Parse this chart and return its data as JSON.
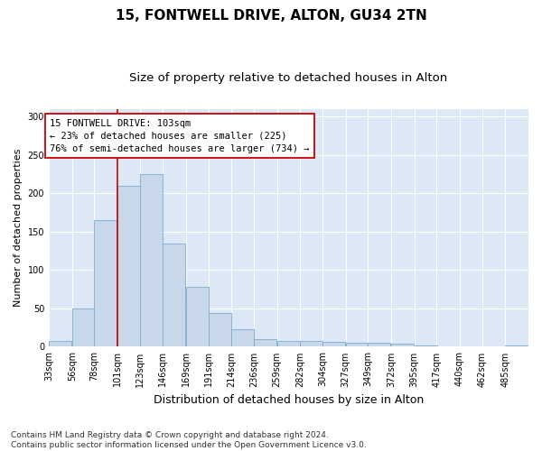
{
  "title": "15, FONTWELL DRIVE, ALTON, GU34 2TN",
  "subtitle": "Size of property relative to detached houses in Alton",
  "xlabel": "Distribution of detached houses by size in Alton",
  "ylabel": "Number of detached properties",
  "bins": [
    33,
    56,
    78,
    101,
    123,
    146,
    169,
    191,
    214,
    236,
    259,
    282,
    304,
    327,
    349,
    372,
    395,
    417,
    440,
    462,
    485
  ],
  "bin_labels": [
    "33sqm",
    "56sqm",
    "78sqm",
    "101sqm",
    "123sqm",
    "146sqm",
    "169sqm",
    "191sqm",
    "214sqm",
    "236sqm",
    "259sqm",
    "282sqm",
    "304sqm",
    "327sqm",
    "349sqm",
    "372sqm",
    "395sqm",
    "417sqm",
    "440sqm",
    "462sqm",
    "485sqm"
  ],
  "values": [
    7,
    50,
    165,
    210,
    225,
    135,
    78,
    44,
    23,
    10,
    8,
    7,
    6,
    5,
    5,
    4,
    2,
    0,
    0,
    0,
    2
  ],
  "bar_color": "#c8d8ea",
  "bar_edge_color": "#7aabce",
  "property_line_x": 101,
  "property_line_color": "#cc0000",
  "annotation_text": "15 FONTWELL DRIVE: 103sqm\n← 23% of detached houses are smaller (225)\n76% of semi-detached houses are larger (734) →",
  "annotation_box_color": "#ffffff",
  "annotation_box_edge": "#cc0000",
  "background_color": "#dce8f5",
  "ylim": [
    0,
    310
  ],
  "yticks": [
    0,
    50,
    100,
    150,
    200,
    250,
    300
  ],
  "footer": "Contains HM Land Registry data © Crown copyright and database right 2024.\nContains public sector information licensed under the Open Government Licence v3.0.",
  "title_fontsize": 11,
  "subtitle_fontsize": 9.5,
  "xlabel_fontsize": 9,
  "ylabel_fontsize": 8,
  "tick_fontsize": 7,
  "annotation_fontsize": 7.5,
  "footer_fontsize": 6.5
}
